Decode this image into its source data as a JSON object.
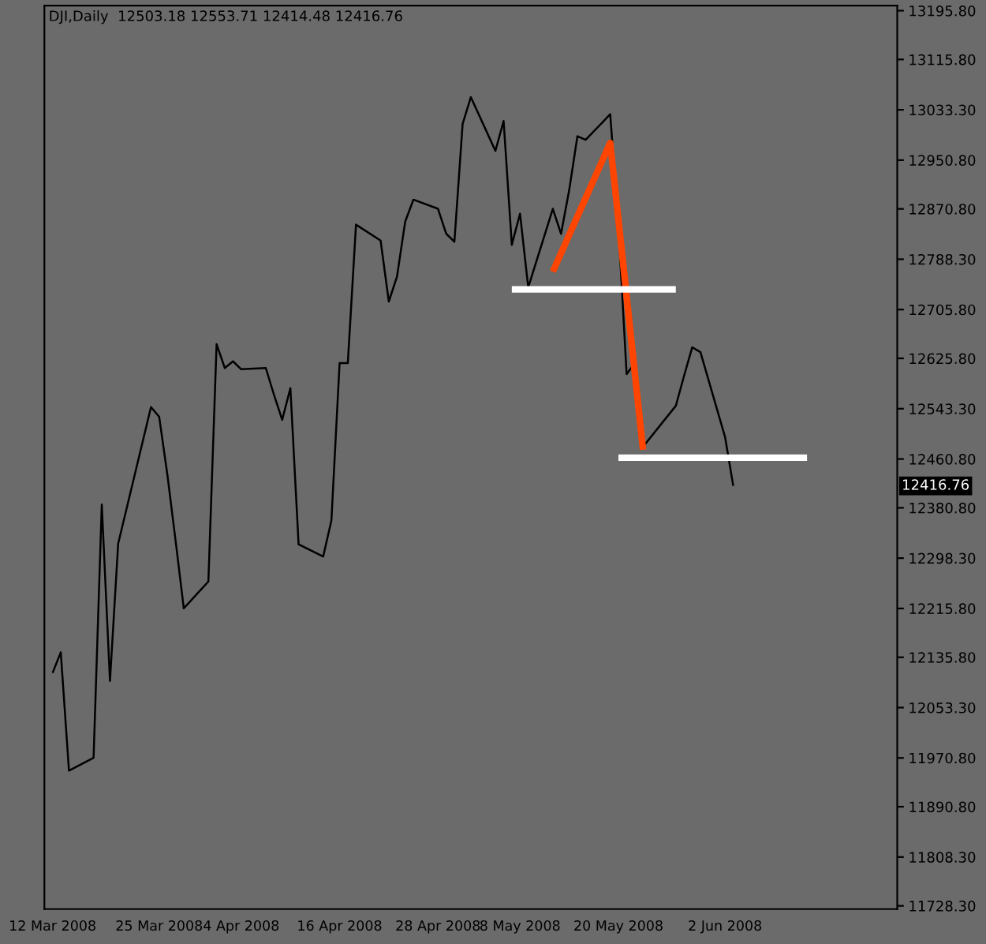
{
  "chart_data": {
    "type": "line",
    "title": "DJI,Daily  12503.18 12553.71 12414.48 12416.76",
    "x": [
      "2008-03-12",
      "2008-03-13",
      "2008-03-14",
      "2008-03-17",
      "2008-03-18",
      "2008-03-19",
      "2008-03-20",
      "2008-03-24",
      "2008-03-25",
      "2008-03-26",
      "2008-03-27",
      "2008-03-28",
      "2008-03-31",
      "2008-04-01",
      "2008-04-02",
      "2008-04-03",
      "2008-04-04",
      "2008-04-07",
      "2008-04-08",
      "2008-04-09",
      "2008-04-10",
      "2008-04-11",
      "2008-04-14",
      "2008-04-15",
      "2008-04-16",
      "2008-04-17",
      "2008-04-18",
      "2008-04-21",
      "2008-04-22",
      "2008-04-23",
      "2008-04-24",
      "2008-04-25",
      "2008-04-28",
      "2008-04-29",
      "2008-04-30",
      "2008-05-01",
      "2008-05-02",
      "2008-05-05",
      "2008-05-06",
      "2008-05-07",
      "2008-05-08",
      "2008-05-09",
      "2008-05-12",
      "2008-05-13",
      "2008-05-14",
      "2008-05-15",
      "2008-05-16",
      "2008-05-19",
      "2008-05-20",
      "2008-05-21",
      "2008-05-22",
      "2008-05-23",
      "2008-05-27",
      "2008-05-28",
      "2008-05-29",
      "2008-05-30",
      "2008-06-02",
      "2008-06-03"
    ],
    "series": [
      {
        "color": "#000000",
        "values": [
          12110,
          12144,
          11950,
          11971,
          12386,
          12097,
          12322,
          12546,
          12530,
          12435,
          12327,
          12216,
          12260,
          12649,
          12610,
          12621,
          12608,
          12610,
          12566,
          12525,
          12577,
          12321,
          12301,
          12360,
          12618,
          12618,
          12845,
          12819,
          12719,
          12760,
          12850,
          12886,
          12871,
          12830,
          12817,
          13010,
          13054,
          12966,
          13015,
          12812,
          12863,
          12742,
          12871,
          12830,
          12902,
          12990,
          12984,
          13026,
          12842,
          12600,
          12618,
          12481,
          12548,
          12597,
          12644,
          12636,
          12497,
          12416.76
        ]
      },
      {
        "color": "#ff4500",
        "x": [
          "2008-05-12",
          "2008-05-19",
          "2008-05-23"
        ],
        "values": [
          12768,
          12979,
          12476
        ]
      },
      {
        "color": "#ffffff",
        "x": [
          "2008-05-07",
          "2008-05-27"
        ],
        "values": [
          12739,
          12739
        ]
      },
      {
        "color": "#ffffff",
        "x": [
          "2008-05-20",
          "2008-06-12"
        ],
        "values": [
          12463,
          12463
        ]
      }
    ],
    "annotations": [
      "12416.76"
    ],
    "xlim": [
      "2008-03-11",
      "2008-06-23"
    ],
    "xticks": [
      {
        "value": "2008-03-12",
        "label": "12 Mar 2008"
      },
      {
        "value": "2008-03-25",
        "label": "25 Mar 2008"
      },
      {
        "value": "2008-04-04",
        "label": "4 Apr 2008"
      },
      {
        "value": "2008-04-16",
        "label": "16 Apr 2008"
      },
      {
        "value": "2008-04-28",
        "label": "28 Apr 2008"
      },
      {
        "value": "2008-05-08",
        "label": "8 May 2008"
      },
      {
        "value": "2008-05-20",
        "label": "20 May 2008"
      },
      {
        "value": "2008-06-02",
        "label": "2 Jun 2008"
      }
    ],
    "ylim": [
      11723,
      13204
    ],
    "yticks": [
      {
        "value": 13195.8,
        "label": "13195.80"
      },
      {
        "value": 13115.8,
        "label": "13115.80"
      },
      {
        "value": 13033.3,
        "label": "13033.30"
      },
      {
        "value": 12950.8,
        "label": "12950.80"
      },
      {
        "value": 12870.8,
        "label": "12870.80"
      },
      {
        "value": 12788.3,
        "label": "12788.30"
      },
      {
        "value": 12705.8,
        "label": "12705.80"
      },
      {
        "value": 12625.8,
        "label": "12625.80"
      },
      {
        "value": 12543.3,
        "label": "12543.30"
      },
      {
        "value": 12460.8,
        "label": "12460.80"
      },
      {
        "value": 12380.8,
        "label": "12380.80"
      },
      {
        "value": 12298.3,
        "label": "12298.30"
      },
      {
        "value": 12215.8,
        "label": "12215.80"
      },
      {
        "value": 12135.8,
        "label": "12135.80"
      },
      {
        "value": 12053.3,
        "label": "12053.30"
      },
      {
        "value": 11970.8,
        "label": "11970.80"
      },
      {
        "value": 11890.8,
        "label": "11890.80"
      },
      {
        "value": 11808.3,
        "label": "11808.30"
      },
      {
        "value": 11728.3,
        "label": "11728.30"
      }
    ],
    "grid": false,
    "legend": false
  }
}
